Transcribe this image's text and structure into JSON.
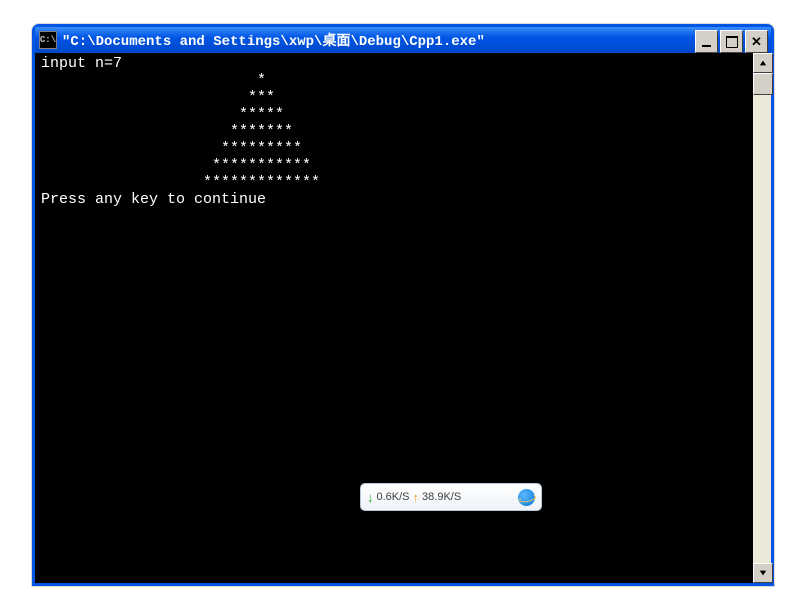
{
  "window": {
    "icon_text": "C:\\",
    "title": "\"C:\\Documents and Settings\\xwp\\桌面\\Debug\\Cpp1.exe\"",
    "border_color": "#0055e5",
    "titlebar_gradient": [
      "#3b8df9",
      "#0055e5",
      "#0048c8"
    ]
  },
  "console": {
    "background": "#000000",
    "text_color": "#ffffff",
    "font": "SimSun, Courier New, monospace",
    "font_size": 15,
    "lines": [
      "input n=7",
      "                        *",
      "                       ***",
      "                      *****",
      "                     *******",
      "                    *********",
      "                   ***********",
      "                  *************",
      "Press any key to continue"
    ]
  },
  "scrollbar": {
    "thumb_top_pct": 0,
    "thumb_height_pct": 4,
    "track_bg": "#ece9d8",
    "button_bg": "#d4d0c8"
  },
  "net_widget": {
    "down_speed": "0.6K/S",
    "up_speed": "38.9K/S",
    "bg_gradient": [
      "#ffffff",
      "#eef3f8"
    ],
    "border_color": "#b8c8d8",
    "down_arrow_color": "#2aa02a",
    "up_arrow_color": "#f0a020"
  }
}
